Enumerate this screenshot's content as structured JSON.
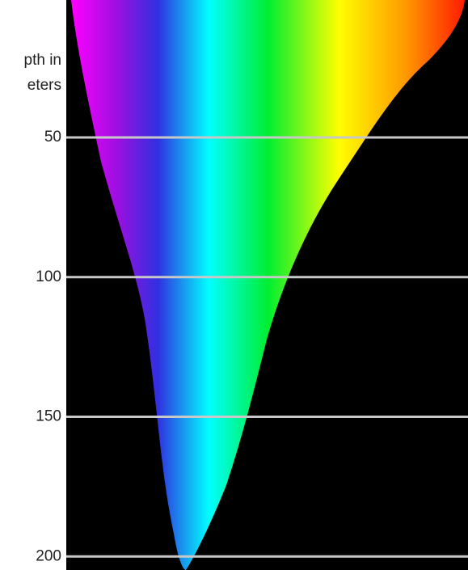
{
  "axis": {
    "label_lines": [
      "pth in",
      "eters"
    ],
    "ticks": [
      50,
      100,
      150,
      200
    ]
  }
}
